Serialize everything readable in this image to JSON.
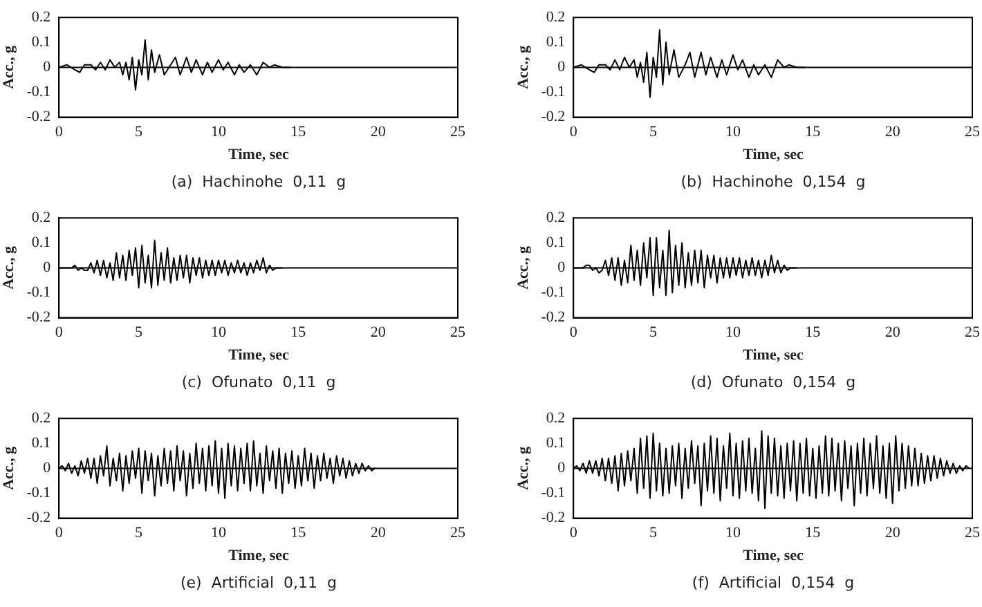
{
  "chart_data": [
    {
      "type": "line",
      "ref_lines": [
        {
          "axis": "y",
          "value": 0
        }
      ],
      "title": "(a)  Hachinohe  0,11  g",
      "xlabel": "Time, sec",
      "ylabel": "Acc., g",
      "xlim": [
        0,
        25
      ],
      "xticks": [
        0,
        5,
        10,
        15,
        20,
        25
      ],
      "ylim": [
        -0.2,
        0.2
      ],
      "yticks": [
        -0.2,
        -0.1,
        0,
        0.1,
        0.2
      ],
      "x": [
        0,
        0.5,
        1,
        1.3,
        1.6,
        2,
        2.3,
        2.6,
        2.9,
        3.2,
        3.5,
        3.8,
        4,
        4.2,
        4.4,
        4.6,
        4.8,
        5,
        5.2,
        5.4,
        5.6,
        5.8,
        6,
        6.3,
        6.6,
        7,
        7.3,
        7.6,
        8,
        8.3,
        8.6,
        9,
        9.3,
        9.6,
        10,
        10.3,
        10.6,
        11,
        11.3,
        11.6,
        12,
        12.4,
        12.8,
        13.2,
        13.5,
        14,
        14.5
      ],
      "series": [
        {
          "color": "#000000",
          "values": [
            0,
            0.01,
            -0.01,
            -0.02,
            0.01,
            0.01,
            -0.01,
            0.02,
            -0.01,
            0.03,
            0,
            0.02,
            -0.03,
            0.02,
            -0.05,
            0.04,
            -0.09,
            0.03,
            -0.03,
            0.11,
            -0.05,
            0.07,
            -0.02,
            0.05,
            -0.03,
            0.01,
            0.04,
            -0.03,
            0.04,
            -0.02,
            0.03,
            -0.03,
            0.02,
            -0.02,
            0.03,
            -0.01,
            0.02,
            -0.03,
            0.01,
            -0.02,
            0.01,
            -0.03,
            0.02,
            0,
            0.01,
            0,
            0
          ]
        }
      ]
    },
    {
      "type": "line",
      "ref_lines": [
        {
          "axis": "y",
          "value": 0
        }
      ],
      "title": "(b)  Hachinohe  0,154  g",
      "xlabel": "Time, sec",
      "ylabel": "Acc., g",
      "xlim": [
        0,
        25
      ],
      "xticks": [
        0,
        5,
        10,
        15,
        20,
        25
      ],
      "ylim": [
        -0.2,
        0.2
      ],
      "yticks": [
        -0.2,
        -0.1,
        0,
        0.1,
        0.2
      ],
      "x": [
        0,
        0.5,
        1,
        1.3,
        1.6,
        2,
        2.3,
        2.6,
        2.9,
        3.2,
        3.5,
        3.8,
        4,
        4.2,
        4.4,
        4.6,
        4.8,
        5,
        5.2,
        5.4,
        5.6,
        5.8,
        6,
        6.3,
        6.6,
        7,
        7.3,
        7.6,
        8,
        8.3,
        8.6,
        9,
        9.3,
        9.6,
        10,
        10.3,
        10.6,
        11,
        11.3,
        11.6,
        12,
        12.4,
        12.8,
        13.2,
        13.5,
        14,
        14.5
      ],
      "series": [
        {
          "color": "#000000",
          "values": [
            0,
            0.01,
            -0.01,
            -0.02,
            0.01,
            0.01,
            -0.01,
            0.03,
            -0.01,
            0.04,
            0,
            0.03,
            -0.04,
            0.02,
            -0.06,
            0.06,
            -0.12,
            0.04,
            -0.04,
            0.15,
            -0.07,
            0.1,
            -0.03,
            0.07,
            -0.04,
            0.01,
            0.06,
            -0.04,
            0.06,
            -0.03,
            0.04,
            -0.04,
            0.03,
            -0.03,
            0.05,
            -0.01,
            0.03,
            -0.04,
            0.01,
            -0.03,
            0.01,
            -0.04,
            0.03,
            0,
            0.01,
            0,
            0
          ]
        }
      ]
    },
    {
      "type": "line",
      "ref_lines": [
        {
          "axis": "y",
          "value": 0
        }
      ],
      "title": "(c)  Ofunato  0,11  g",
      "xlabel": "Time, sec",
      "ylabel": "Acc., g",
      "xlim": [
        0,
        25
      ],
      "xticks": [
        0,
        5,
        10,
        15,
        20,
        25
      ],
      "ylim": [
        -0.2,
        0.2
      ],
      "yticks": [
        -0.2,
        -0.1,
        0,
        0.1,
        0.2
      ],
      "x": [
        0,
        0.2,
        0.4,
        0.6,
        0.8,
        1,
        1.2,
        1.4,
        1.6,
        1.8,
        2,
        2.2,
        2.4,
        2.6,
        2.8,
        3,
        3.2,
        3.4,
        3.6,
        3.8,
        4,
        4.2,
        4.4,
        4.6,
        4.8,
        5,
        5.2,
        5.4,
        5.6,
        5.8,
        6,
        6.2,
        6.4,
        6.6,
        6.8,
        7,
        7.2,
        7.4,
        7.6,
        7.8,
        8,
        8.2,
        8.4,
        8.6,
        8.8,
        9,
        9.2,
        9.4,
        9.6,
        9.8,
        10,
        10.2,
        10.4,
        10.6,
        10.8,
        11,
        11.2,
        11.4,
        11.6,
        11.8,
        12,
        12.2,
        12.4,
        12.6,
        12.8,
        13,
        13.2,
        13.4,
        13.6,
        13.8,
        14
      ],
      "series": [
        {
          "color": "#000000",
          "values": [
            0,
            0,
            0,
            0,
            0,
            0.01,
            -0.01,
            0,
            -0.01,
            -0.01,
            0.02,
            -0.02,
            0.03,
            -0.03,
            0.03,
            -0.04,
            0.02,
            -0.05,
            0.06,
            -0.04,
            0.05,
            -0.05,
            0.07,
            -0.03,
            0.08,
            -0.08,
            0.09,
            -0.06,
            0.05,
            -0.08,
            0.11,
            -0.07,
            0.06,
            -0.05,
            0.08,
            -0.06,
            0.04,
            -0.05,
            0.05,
            -0.04,
            0.05,
            -0.06,
            0.04,
            -0.03,
            0.04,
            -0.04,
            0.03,
            -0.03,
            0.03,
            -0.03,
            0.03,
            -0.02,
            0.03,
            -0.03,
            0.02,
            -0.02,
            0.03,
            -0.02,
            0.02,
            -0.03,
            0.02,
            -0.02,
            0.03,
            -0.01,
            0.04,
            -0.02,
            0.01,
            -0.01,
            0,
            0,
            0
          ]
        }
      ]
    },
    {
      "type": "line",
      "ref_lines": [
        {
          "axis": "y",
          "value": 0
        }
      ],
      "title": "(d)  Ofunato  0,154  g",
      "xlabel": "Time, sec",
      "ylabel": "Acc., g",
      "xlim": [
        0,
        25
      ],
      "xticks": [
        0,
        5,
        10,
        15,
        20,
        25
      ],
      "ylim": [
        -0.2,
        0.2
      ],
      "yticks": [
        -0.2,
        -0.1,
        0,
        0.1,
        0.2
      ],
      "x": [
        0,
        0.2,
        0.4,
        0.6,
        0.8,
        1,
        1.2,
        1.4,
        1.6,
        1.8,
        2,
        2.2,
        2.4,
        2.6,
        2.8,
        3,
        3.2,
        3.4,
        3.6,
        3.8,
        4,
        4.2,
        4.4,
        4.6,
        4.8,
        5,
        5.2,
        5.4,
        5.6,
        5.8,
        6,
        6.2,
        6.4,
        6.6,
        6.8,
        7,
        7.2,
        7.4,
        7.6,
        7.8,
        8,
        8.2,
        8.4,
        8.6,
        8.8,
        9,
        9.2,
        9.4,
        9.6,
        9.8,
        10,
        10.2,
        10.4,
        10.6,
        10.8,
        11,
        11.2,
        11.4,
        11.6,
        11.8,
        12,
        12.2,
        12.4,
        12.6,
        12.8,
        13,
        13.2,
        13.4,
        13.6,
        13.8,
        14
      ],
      "series": [
        {
          "color": "#000000",
          "values": [
            0,
            0,
            0,
            0,
            0.01,
            0.01,
            -0.01,
            0,
            -0.02,
            -0.01,
            0.03,
            -0.03,
            0.04,
            -0.05,
            0.04,
            -0.07,
            0.03,
            -0.06,
            0.09,
            -0.05,
            0.07,
            -0.07,
            0.1,
            -0.04,
            0.12,
            -0.11,
            0.12,
            -0.08,
            0.07,
            -0.11,
            0.15,
            -0.1,
            0.09,
            -0.07,
            0.1,
            -0.08,
            0.06,
            -0.07,
            0.07,
            -0.06,
            0.07,
            -0.08,
            0.05,
            -0.04,
            0.05,
            -0.06,
            0.04,
            -0.04,
            0.04,
            -0.04,
            0.04,
            -0.03,
            0.04,
            -0.04,
            0.03,
            -0.03,
            0.04,
            -0.03,
            0.03,
            -0.04,
            0.03,
            -0.03,
            0.05,
            -0.02,
            0.03,
            -0.02,
            0.01,
            -0.01,
            0,
            0,
            0
          ]
        }
      ]
    },
    {
      "type": "line",
      "ref_lines": [
        {
          "axis": "y",
          "value": 0
        }
      ],
      "title": "(e)  Artificial  0,11  g",
      "xlabel": "Time, sec",
      "ylabel": "Acc., g",
      "xlim": [
        0,
        25
      ],
      "xticks": [
        0,
        5,
        10,
        15,
        20,
        25
      ],
      "ylim": [
        -0.2,
        0.2
      ],
      "yticks": [
        -0.2,
        -0.1,
        0,
        0.1,
        0.2
      ],
      "x": [
        0,
        0.2,
        0.4,
        0.6,
        0.8,
        1,
        1.2,
        1.4,
        1.6,
        1.8,
        2,
        2.2,
        2.4,
        2.6,
        2.8,
        3,
        3.2,
        3.4,
        3.6,
        3.8,
        4,
        4.2,
        4.4,
        4.6,
        4.8,
        5,
        5.2,
        5.4,
        5.6,
        5.8,
        6,
        6.2,
        6.4,
        6.6,
        6.8,
        7,
        7.2,
        7.4,
        7.6,
        7.8,
        8,
        8.2,
        8.4,
        8.6,
        8.8,
        9,
        9.2,
        9.4,
        9.6,
        9.8,
        10,
        10.2,
        10.4,
        10.6,
        10.8,
        11,
        11.2,
        11.4,
        11.6,
        11.8,
        12,
        12.2,
        12.4,
        12.6,
        12.8,
        13,
        13.2,
        13.4,
        13.6,
        13.8,
        14,
        14.2,
        14.4,
        14.6,
        14.8,
        15,
        15.2,
        15.4,
        15.6,
        15.8,
        16,
        16.2,
        16.4,
        16.6,
        16.8,
        17,
        17.2,
        17.4,
        17.6,
        17.8,
        18,
        18.2,
        18.4,
        18.6,
        18.8,
        19,
        19.2,
        19.4,
        19.6,
        19.8
      ],
      "series": [
        {
          "color": "#000000",
          "values": [
            0,
            0.01,
            -0.01,
            0.02,
            -0.02,
            0.01,
            -0.03,
            0.03,
            -0.02,
            0.04,
            -0.04,
            0.04,
            -0.06,
            0.05,
            -0.03,
            0.09,
            -0.07,
            0.04,
            -0.05,
            0.06,
            -0.09,
            0.05,
            -0.06,
            0.07,
            -0.04,
            0.08,
            -0.1,
            0.07,
            -0.05,
            0.06,
            -0.11,
            0.05,
            -0.07,
            0.08,
            -0.06,
            0.07,
            -0.09,
            0.09,
            -0.05,
            0.07,
            -0.11,
            0.06,
            -0.08,
            0.1,
            -0.06,
            0.08,
            -0.09,
            0.09,
            -0.07,
            0.11,
            -0.1,
            0.08,
            -0.12,
            0.1,
            -0.07,
            0.09,
            -0.09,
            0.08,
            -0.06,
            0.1,
            -0.09,
            0.11,
            -0.07,
            0.06,
            -0.1,
            0.09,
            -0.05,
            0.07,
            -0.08,
            0.08,
            -0.1,
            0.06,
            -0.06,
            0.07,
            -0.08,
            0.05,
            -0.07,
            0.08,
            -0.05,
            0.06,
            -0.08,
            0.05,
            -0.05,
            0.06,
            -0.04,
            0.04,
            -0.06,
            0.05,
            -0.03,
            0.04,
            -0.04,
            0.03,
            -0.03,
            0.02,
            -0.02,
            0.02,
            -0.01,
            0.01,
            -0.01,
            0
          ]
        }
      ]
    },
    {
      "type": "line",
      "ref_lines": [
        {
          "axis": "y",
          "value": 0
        }
      ],
      "title": "(f)  Artificial  0,154  g",
      "xlabel": "Time, sec",
      "ylabel": "Acc., g",
      "xlim": [
        0,
        25
      ],
      "xticks": [
        0,
        5,
        10,
        15,
        20,
        25
      ],
      "ylim": [
        -0.2,
        0.2
      ],
      "yticks": [
        -0.2,
        -0.1,
        0,
        0.1,
        0.2
      ],
      "x": [
        0,
        0.2,
        0.4,
        0.6,
        0.8,
        1,
        1.2,
        1.4,
        1.6,
        1.8,
        2,
        2.2,
        2.4,
        2.6,
        2.8,
        3,
        3.2,
        3.4,
        3.6,
        3.8,
        4,
        4.2,
        4.4,
        4.6,
        4.8,
        5,
        5.2,
        5.4,
        5.6,
        5.8,
        6,
        6.2,
        6.4,
        6.6,
        6.8,
        7,
        7.2,
        7.4,
        7.6,
        7.8,
        8,
        8.2,
        8.4,
        8.6,
        8.8,
        9,
        9.2,
        9.4,
        9.6,
        9.8,
        10,
        10.2,
        10.4,
        10.6,
        10.8,
        11,
        11.2,
        11.4,
        11.6,
        11.8,
        12,
        12.2,
        12.4,
        12.6,
        12.8,
        13,
        13.2,
        13.4,
        13.6,
        13.8,
        14,
        14.2,
        14.4,
        14.6,
        14.8,
        15,
        15.2,
        15.4,
        15.6,
        15.8,
        16,
        16.2,
        16.4,
        16.6,
        16.8,
        17,
        17.2,
        17.4,
        17.6,
        17.8,
        18,
        18.2,
        18.4,
        18.6,
        18.8,
        19,
        19.2,
        19.4,
        19.6,
        19.8,
        20,
        20.2,
        20.4,
        20.6,
        20.8,
        21,
        21.2,
        21.4,
        21.6,
        21.8,
        22,
        22.2,
        22.4,
        22.6,
        22.8,
        23,
        23.2,
        23.4,
        23.6,
        23.8,
        24,
        24.2,
        24.4,
        24.6,
        24.8
      ],
      "series": [
        {
          "color": "#000000",
          "values": [
            0,
            0.01,
            -0.01,
            0.02,
            -0.02,
            0.03,
            -0.02,
            0.03,
            -0.03,
            0.04,
            -0.05,
            0.04,
            -0.06,
            0.05,
            -0.09,
            0.06,
            -0.07,
            0.07,
            -0.05,
            0.08,
            -0.1,
            0.12,
            -0.08,
            0.13,
            -0.12,
            0.14,
            -0.09,
            0.1,
            -0.11,
            0.08,
            -0.1,
            0.09,
            -0.07,
            0.1,
            -0.12,
            0.08,
            -0.08,
            0.11,
            -0.06,
            0.09,
            -0.15,
            0.1,
            -0.09,
            0.13,
            -0.1,
            0.12,
            -0.13,
            0.09,
            -0.08,
            0.14,
            -0.11,
            0.1,
            -0.12,
            0.11,
            -0.09,
            0.12,
            -0.1,
            0.08,
            -0.13,
            0.15,
            -0.16,
            0.13,
            -0.1,
            0.12,
            -0.11,
            0.09,
            -0.12,
            0.1,
            -0.09,
            0.11,
            -0.13,
            0.1,
            -0.1,
            0.12,
            -0.11,
            0.08,
            -0.12,
            0.09,
            -0.1,
            0.13,
            -0.11,
            0.12,
            -0.09,
            0.1,
            -0.13,
            0.11,
            -0.08,
            0.09,
            -0.15,
            0.1,
            -0.1,
            0.12,
            -0.11,
            0.1,
            -0.08,
            0.13,
            -0.1,
            0.09,
            -0.12,
            0.1,
            -0.14,
            0.13,
            -0.09,
            0.1,
            -0.08,
            0.09,
            -0.07,
            0.08,
            -0.07,
            0.06,
            -0.06,
            0.05,
            -0.05,
            0.05,
            -0.04,
            0.04,
            -0.03,
            0.03,
            -0.02,
            0.02,
            -0.02,
            0.01,
            -0.01,
            0.01,
            0
          ]
        }
      ]
    }
  ]
}
